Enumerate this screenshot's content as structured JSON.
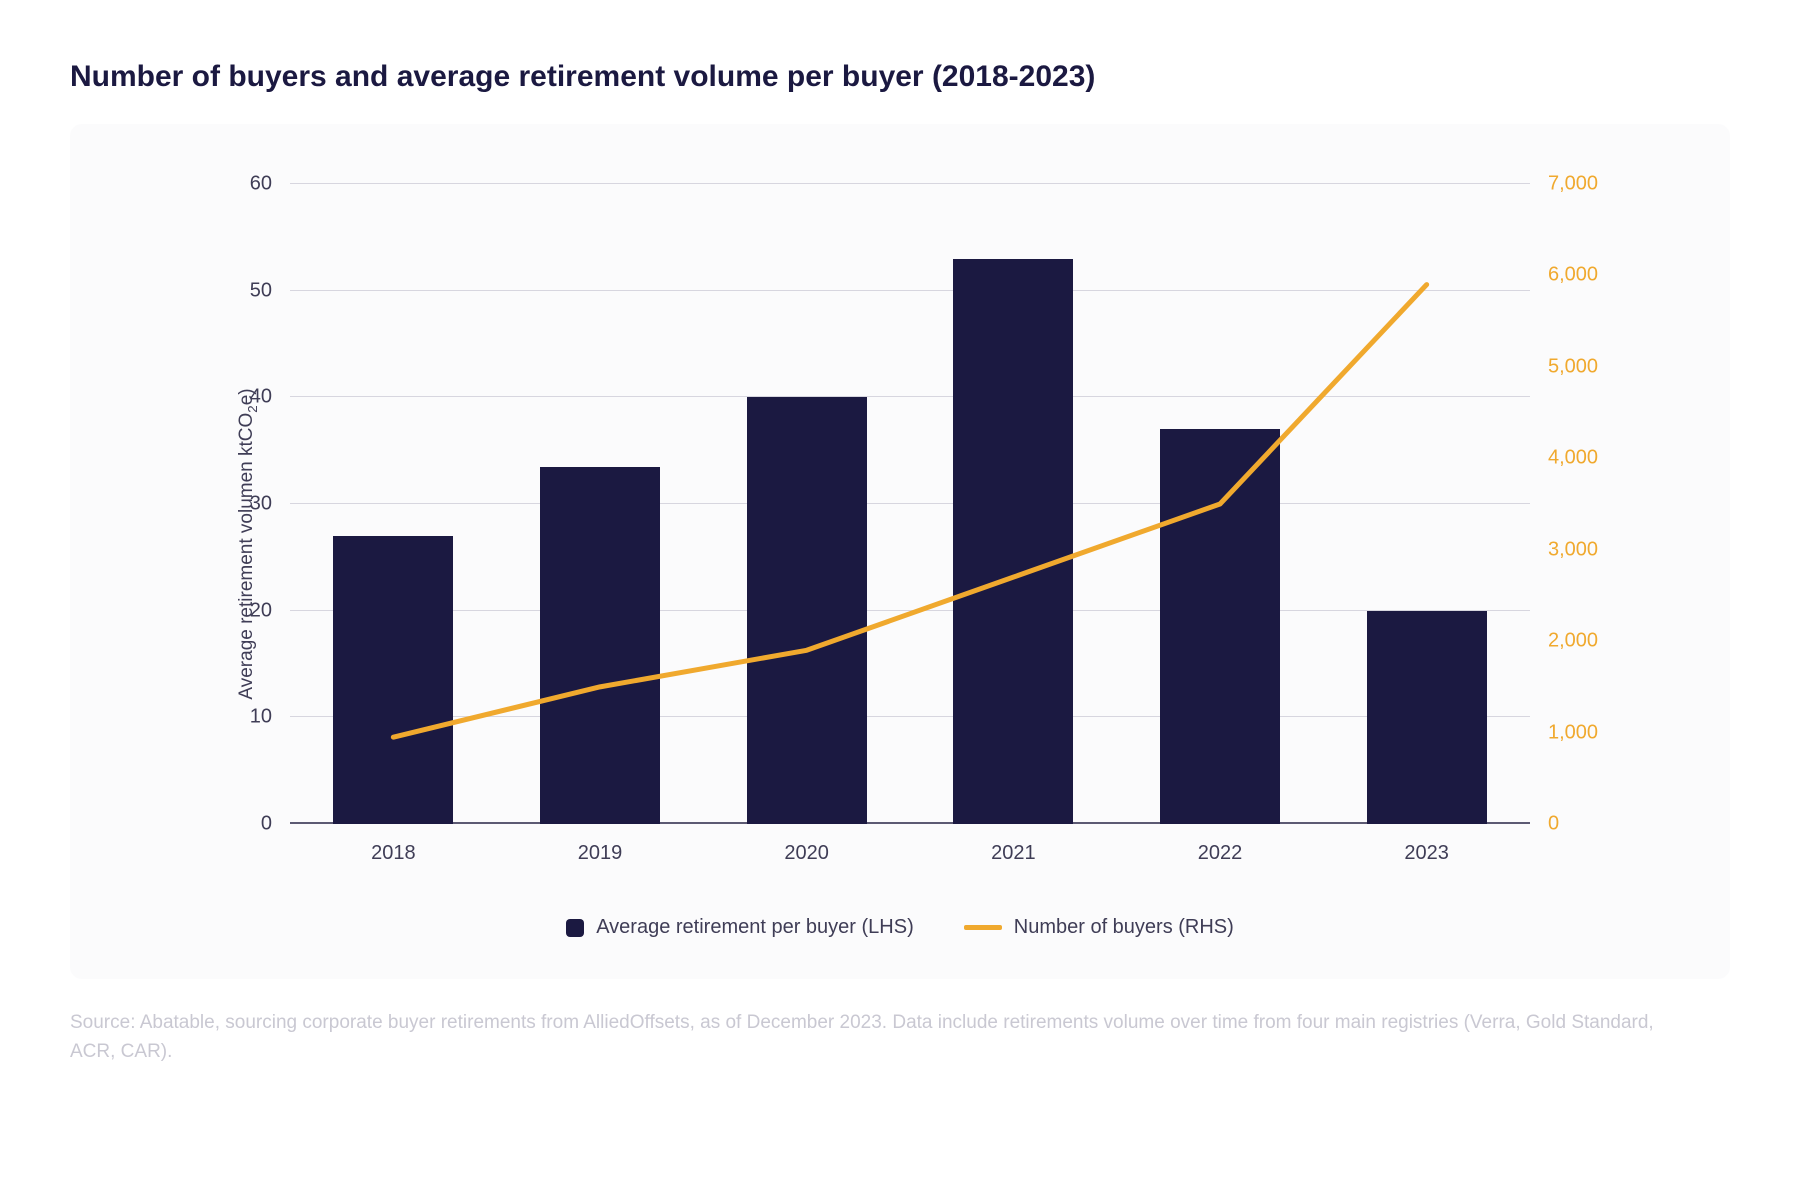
{
  "title": "Number of buyers and average retirement volume per buyer (2018-2023)",
  "chart": {
    "type": "bar+line",
    "background_color": "#fbfbfc",
    "grid_color": "#d7d6df",
    "baseline_color": "#5c5a73",
    "title_color": "#1b1941",
    "left_axis_color": "#3f3d56",
    "right_axis_color": "#f0a92e",
    "x_label_color": "#3f3d56",
    "categories": [
      "2018",
      "2019",
      "2020",
      "2021",
      "2022",
      "2023"
    ],
    "bars": {
      "label": "Average retirement per buyer (LHS)",
      "color": "#1b1941",
      "values": [
        27,
        33.5,
        40,
        53,
        37,
        20
      ],
      "width_fraction": 0.58
    },
    "line": {
      "label": "Number of buyers (RHS)",
      "color": "#f0a92e",
      "stroke_width": 5,
      "values": [
        950,
        1500,
        1900,
        2700,
        3500,
        5900
      ]
    },
    "y_left": {
      "min": 0,
      "max": 60,
      "ticks": [
        0,
        10,
        20,
        30,
        40,
        50,
        60
      ],
      "title": "Average retirement volumen ktCO₂e)"
    },
    "y_right": {
      "min": 0,
      "max": 7000,
      "ticks": [
        0,
        1000,
        2000,
        3000,
        4000,
        5000,
        6000,
        7000
      ],
      "tick_labels": [
        "0",
        "1,000",
        "2,000",
        "3,000",
        "4,000",
        "5,000",
        "6,000",
        "7,000"
      ]
    }
  },
  "source": "Source: Abatable, sourcing corporate buyer retirements from AlliedOffsets, as of December 2023. Data  include retirements volume over time from four main registries (Verra, Gold Standard, ACR, CAR).",
  "source_color": "#c9c8d2"
}
